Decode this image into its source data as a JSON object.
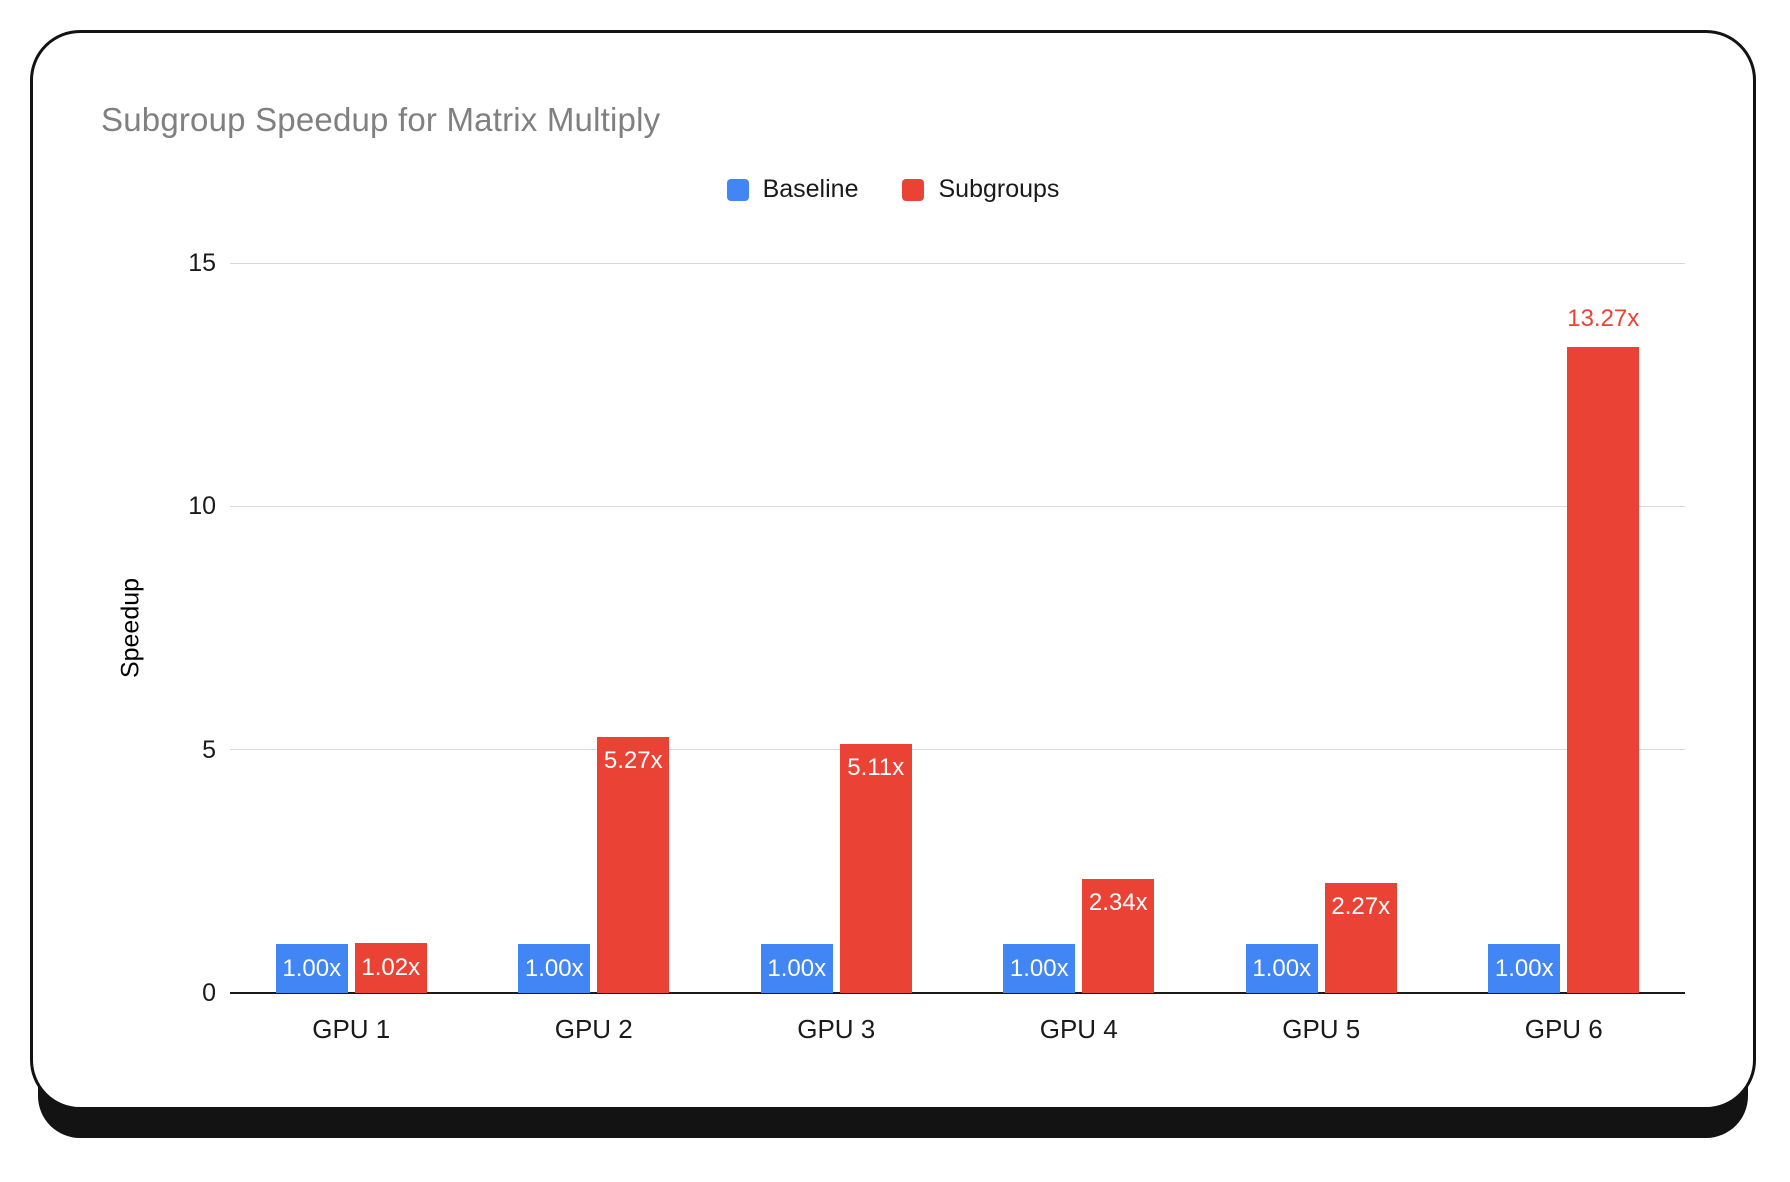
{
  "window": {
    "background_color": "#ffffff",
    "card_border_color": "#131313"
  },
  "legend": {
    "items": [
      {
        "label": "Baseline",
        "color": "#4285F4"
      },
      {
        "label": "Subgroups",
        "color": "#EA4335"
      }
    ]
  },
  "chart_data": {
    "type": "bar",
    "title": "Subgroup Speedup for Matrix Multiply",
    "title_color": "#808080",
    "xlabel": "",
    "ylabel": "Speedup",
    "categories": [
      "GPU 1",
      "GPU 2",
      "GPU 3",
      "GPU 4",
      "GPU 5",
      "GPU 6"
    ],
    "series": [
      {
        "name": "Baseline",
        "color": "#4285F4",
        "values": [
          1.0,
          1.0,
          1.0,
          1.0,
          1.0,
          1.0
        ],
        "data_labels": [
          "1.00x",
          "1.00x",
          "1.00x",
          "1.00x",
          "1.00x",
          "1.00x"
        ]
      },
      {
        "name": "Subgroups",
        "color": "#EA4335",
        "values": [
          1.02,
          5.27,
          5.11,
          2.34,
          2.27,
          13.27
        ],
        "data_labels": [
          "1.02x",
          "5.27x",
          "5.11x",
          "2.34x",
          "2.27x",
          "13.27x"
        ]
      }
    ],
    "yticks": [
      0,
      5,
      10,
      15
    ],
    "ylim": [
      0,
      15
    ],
    "grid": true,
    "legend_position": "top",
    "inside_label_color": "#ffffff",
    "gridline_color": "#d9d9d9",
    "axis_line_color": "#1a1a1a"
  }
}
